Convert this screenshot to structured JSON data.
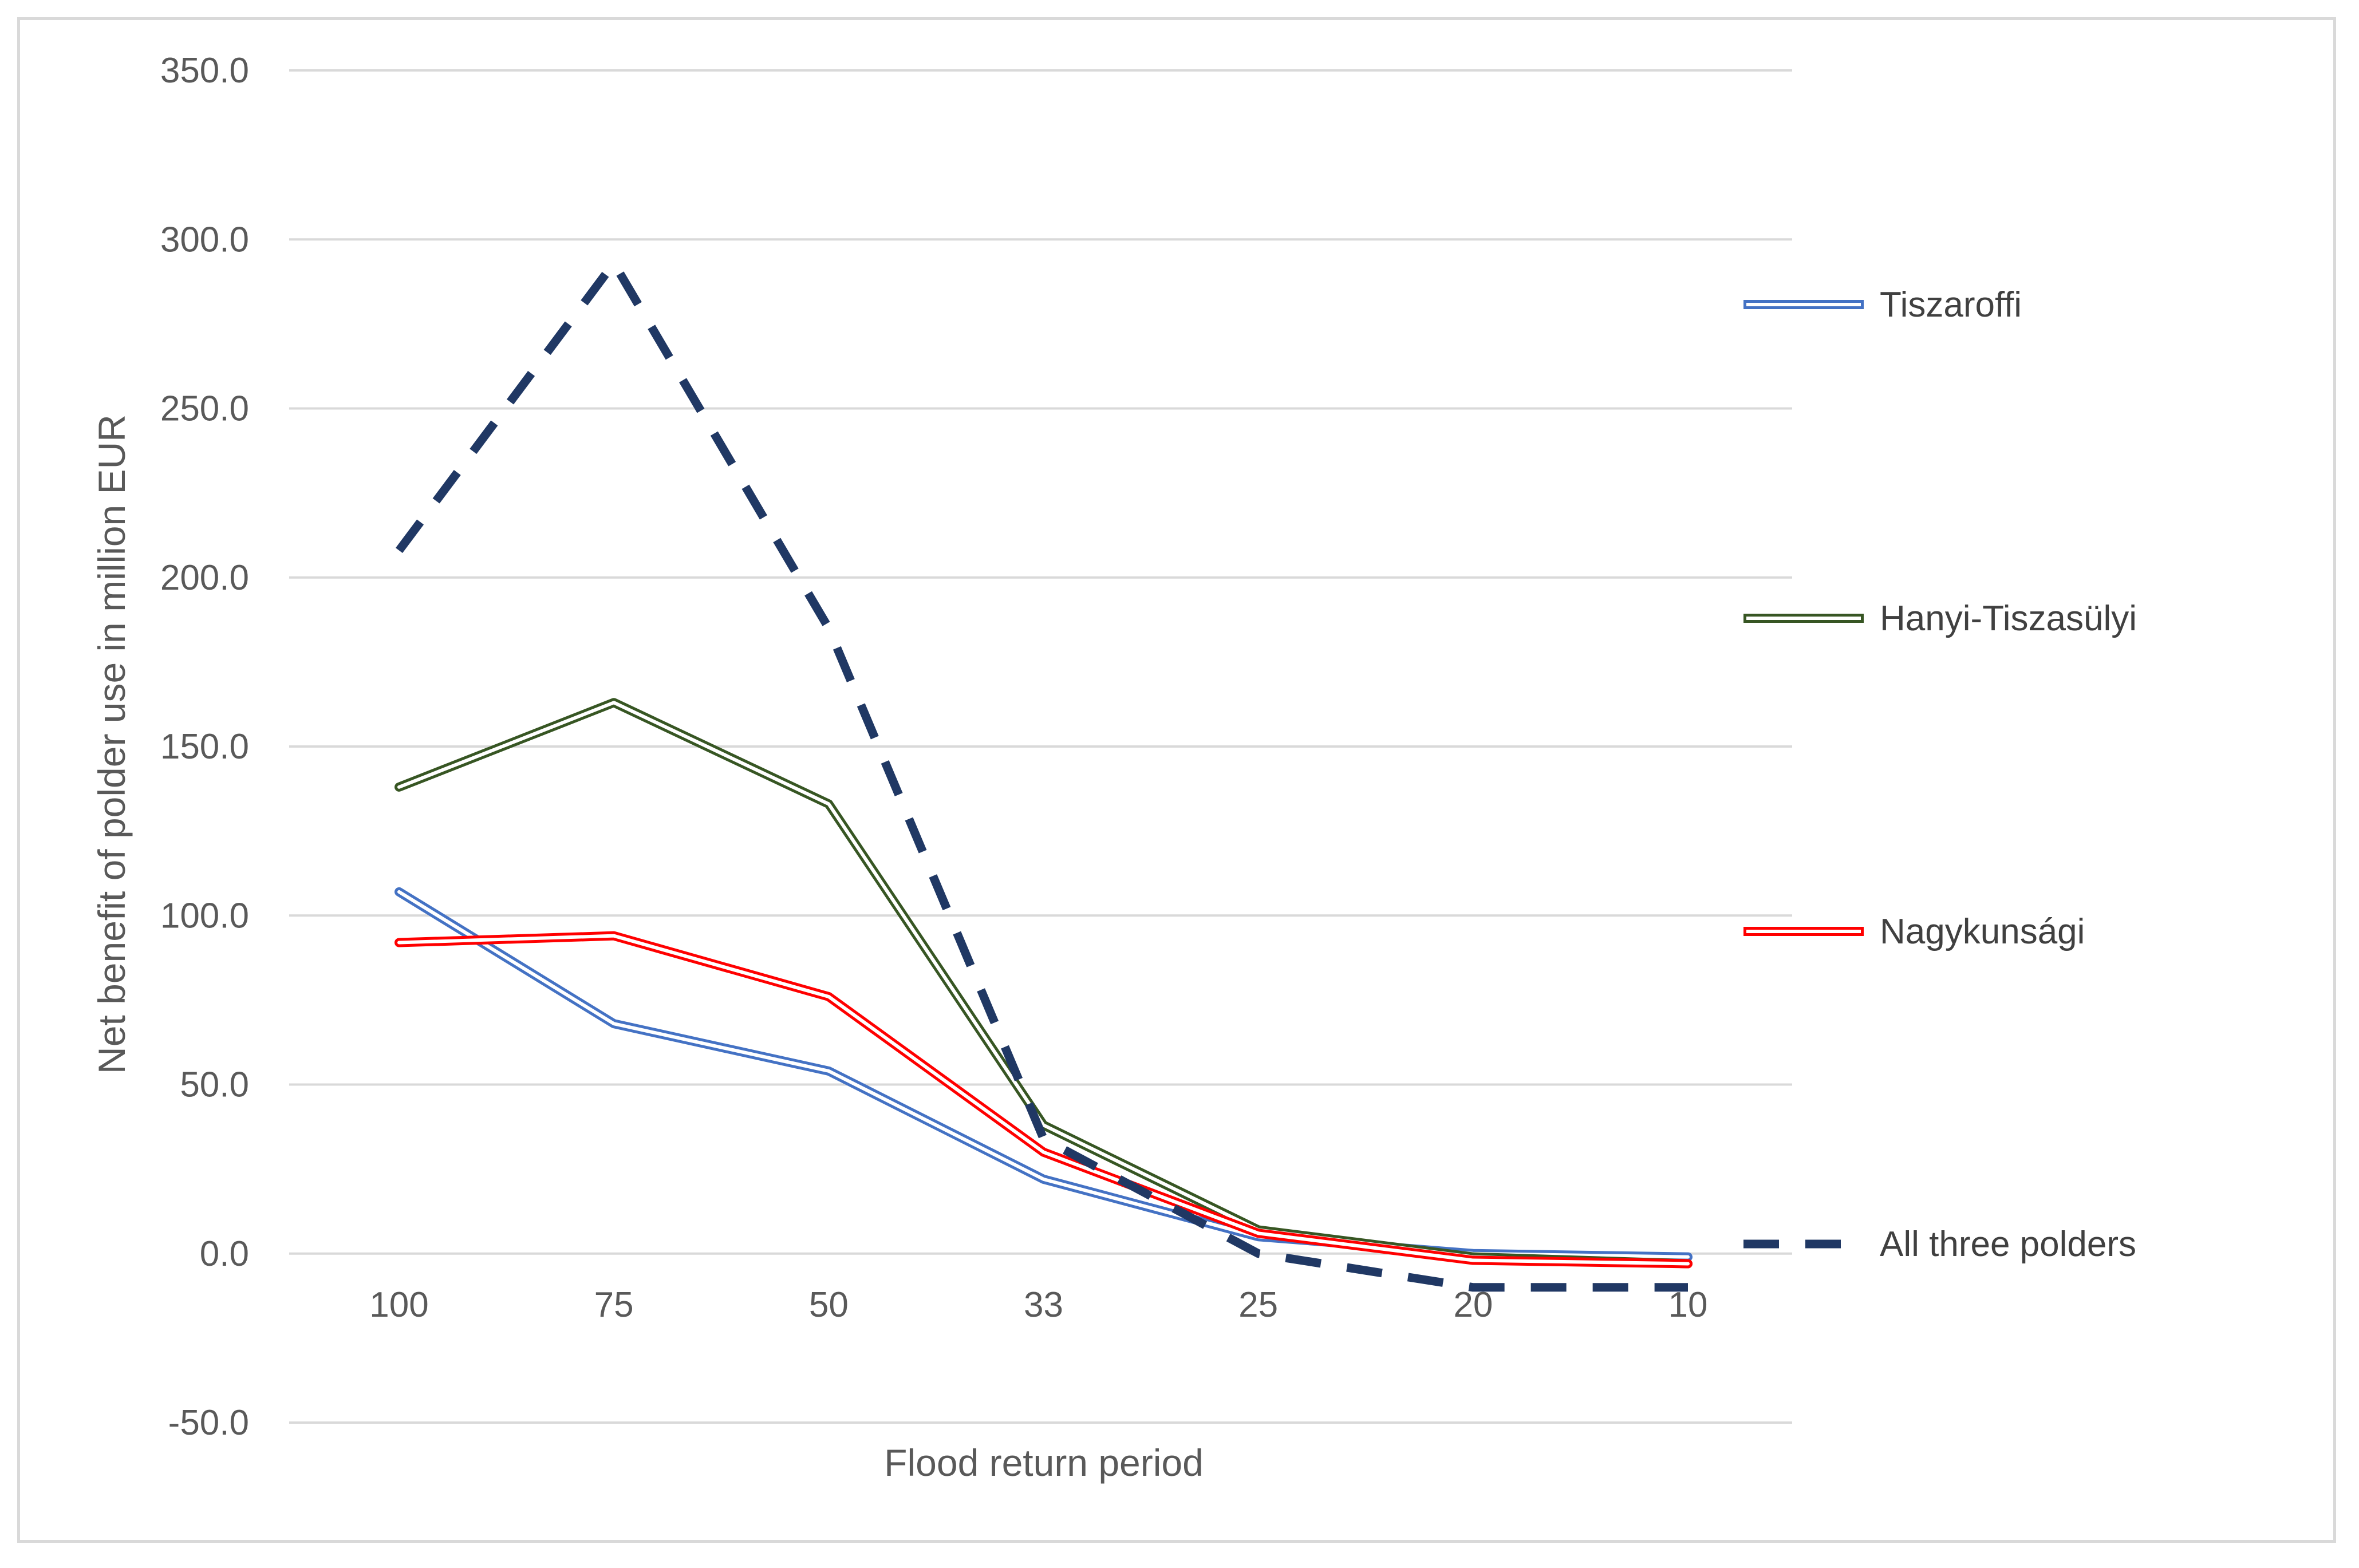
{
  "chart_data": {
    "type": "line",
    "title": "",
    "xlabel": "Flood return period",
    "ylabel": "Net benefit of polder use in million EUR",
    "categories": [
      "100",
      "75",
      "50",
      "33",
      "25",
      "20",
      "10"
    ],
    "ylim": [
      -50,
      350
    ],
    "yticks": [
      350,
      300,
      250,
      200,
      150,
      100,
      50,
      0,
      -50
    ],
    "ytick_labels": [
      "350.0",
      "300.0",
      "250.0",
      "200.0",
      "150.0",
      "100.0",
      "50.0",
      "0.0",
      "-50.0"
    ],
    "grid": true,
    "legend_position": "right",
    "series": [
      {
        "name": "Tiszaroffi",
        "values": [
          107,
          68,
          54,
          22,
          5,
          0,
          -1
        ],
        "color": "#4472c4",
        "style": "double"
      },
      {
        "name": "Hanyi-Tiszasülyi",
        "values": [
          138,
          163,
          133,
          38,
          7,
          -1,
          -3
        ],
        "color": "#375623",
        "style": "double"
      },
      {
        "name": "Nagykunsági",
        "values": [
          92,
          94,
          76,
          30,
          6,
          -2,
          -3
        ],
        "color": "#ff0000",
        "style": "double"
      },
      {
        "name": "All three polders",
        "values": [
          208,
          293,
          185,
          34,
          0,
          -10,
          -10
        ],
        "color": "#203864",
        "style": "dashed"
      }
    ]
  }
}
